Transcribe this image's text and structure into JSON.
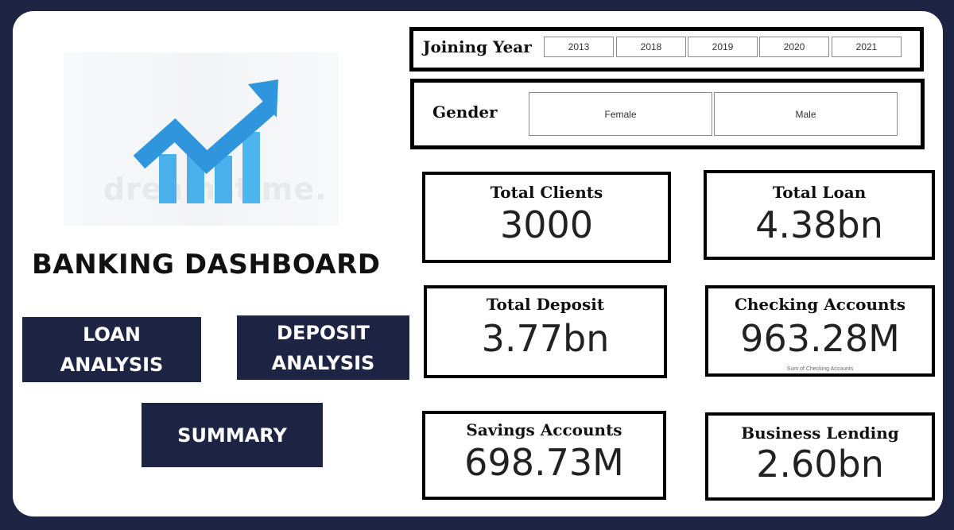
{
  "app": {
    "title": "BANKING DASHBOARD"
  },
  "logo": {
    "watermark": "dreamstime.",
    "icon": "growth-chart-icon",
    "accent_color": "#2f96de"
  },
  "nav": {
    "loan_label": "LOAN\nANALYSIS",
    "deposit_label": "DEPOSIT\nANALYSIS",
    "summary_label": "SUMMARY"
  },
  "filters": {
    "joining_year": {
      "title": "Joining Year",
      "options": [
        "2013",
        "2018",
        "2019",
        "2020",
        "2021"
      ]
    },
    "gender": {
      "title": "Gender",
      "options": [
        "Female",
        "Male"
      ]
    }
  },
  "kpis": {
    "total_clients": {
      "label": "Total Clients",
      "value": "3000"
    },
    "total_loan": {
      "label": "Total Loan",
      "value": "4.38bn"
    },
    "total_deposit": {
      "label": "Total Deposit",
      "value": "3.77bn"
    },
    "checking_accounts": {
      "label": "Checking Accounts",
      "value": "963.28M",
      "sub": "Sum of Checking Accounts"
    },
    "savings_accounts": {
      "label": "Savings Accounts",
      "value": "698.73M"
    },
    "business_lending": {
      "label": "Business Lending",
      "value": "2.60bn"
    }
  },
  "colors": {
    "background": "#1e2443",
    "button": "#1e2443",
    "panel": "#ffffff"
  }
}
